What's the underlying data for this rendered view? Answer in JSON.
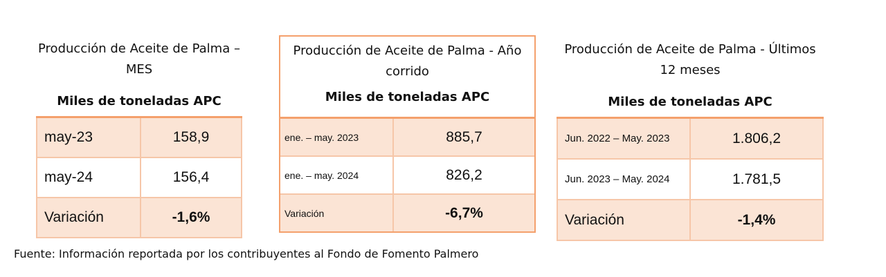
{
  "tables": [
    {
      "title": "Producción de Aceite de Palma – MES",
      "subtitle": "Miles de toneladas APC",
      "rows": [
        {
          "label": "may-23",
          "value": "158,9"
        },
        {
          "label": "may-24",
          "value": "156,4"
        },
        {
          "label": "Variación",
          "value": "-1,6%"
        }
      ]
    },
    {
      "title": "Producción de Aceite de Palma - Año corrido",
      "subtitle": "Miles de toneladas APC",
      "rows": [
        {
          "label": "ene. – may. 2023",
          "value": "885,7"
        },
        {
          "label": "ene. – may. 2024",
          "value": "826,2"
        },
        {
          "label": "Variación",
          "value": "-6,7%"
        }
      ]
    },
    {
      "title": "Producción de Aceite de Palma - Últimos 12 meses",
      "subtitle": "Miles de toneladas APC",
      "rows": [
        {
          "label": "Jun. 2022 – May. 2023",
          "value": "1.806,2"
        },
        {
          "label": "Jun. 2023 – May. 2024",
          "value": "1.781,5"
        },
        {
          "label": "Variación",
          "value": "-1,4%"
        }
      ]
    }
  ],
  "source": "Fuente: Información reportada por los contribuyentes al Fondo de Fomento Palmero",
  "colors": {
    "shade": "#fbe4d5",
    "border_light": "#f6c6a8",
    "border_accent": "#f4a06c"
  }
}
